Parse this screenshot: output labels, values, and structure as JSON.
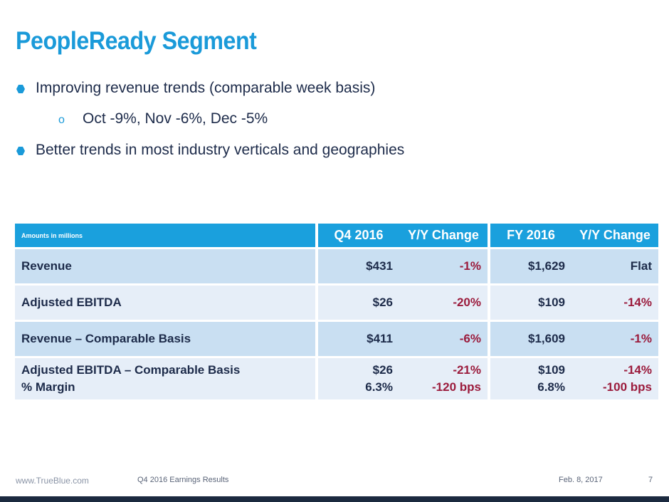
{
  "title": "PeopleReady Segment",
  "bullets": [
    "Improving revenue trends (comparable week basis)",
    "Oct -9%, Nov -6%, Dec -5%",
    "Better trends in most industry verticals and geographies"
  ],
  "sub_marker": "o",
  "table": {
    "headers": [
      "Amounts in millions",
      "Q4 2016",
      "Y/Y Change",
      "FY 2016",
      "Y/Y Change"
    ],
    "rows": [
      {
        "label": "Revenue",
        "q4": "$431",
        "q4_chg": "-1%",
        "fy": "$1,629",
        "fy_chg": "Flat"
      },
      {
        "label": "Adjusted EBITDA",
        "q4": "$26",
        "q4_chg": "-20%",
        "fy": "$109",
        "fy_chg": "-14%"
      },
      {
        "label": "Revenue – Comparable Basis",
        "q4": "$411",
        "q4_chg": "-6%",
        "fy": "$1,609",
        "fy_chg": "-1%"
      },
      {
        "label": "Adjusted EBITDA  – Comparable Basis",
        "label2": "% Margin",
        "q4": "$26",
        "q4_2": "6.3%",
        "q4_chg": "-21%",
        "q4_chg2": "-120 bps",
        "fy": "$109",
        "fy_2": "6.8%",
        "fy_chg": "-14%",
        "fy_chg2": "-100 bps"
      }
    ]
  },
  "footer": {
    "site": "www.TrueBlue.com",
    "deck": "Q4 2016 Earnings Results",
    "date": "Feb. 8, 2017",
    "page": "7"
  },
  "colors": {
    "accent": "#1a9ad9",
    "header_bg": "#1aa0dd",
    "negative": "#9b1b3c",
    "text": "#1d2b4a"
  }
}
